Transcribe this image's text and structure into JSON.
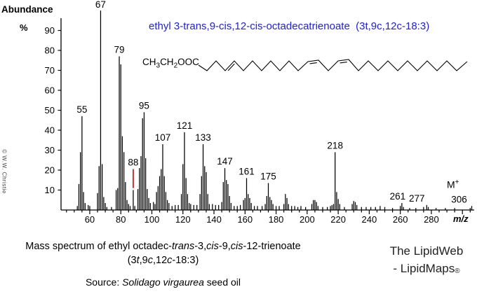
{
  "title": "ethyl 3-trans,9-cis,12-cis-octadecatrienoate  (3t,9c,12c-18:3)",
  "watermark": "© W.W. Christie",
  "molecule": {
    "p1": "CH",
    "s1": "3",
    "p2": "CH",
    "s2": "2",
    "p3": "OOC"
  },
  "molecular_ion": {
    "label": "M",
    "charge": "+"
  },
  "chart_data": {
    "type": "bar",
    "title": "ethyl 3-trans,9-cis,12-cis-octadecatrienoate  (3t,9c,12c-18:3)",
    "xlabel": "m/z",
    "ylabel_parts": {
      "line1": "Abundance",
      "line2": "%"
    },
    "xlim": [
      41.5,
      308
    ],
    "ylim": [
      0,
      100
    ],
    "yticks": [
      10,
      20,
      30,
      40,
      50,
      60,
      70,
      80,
      90
    ],
    "xticks": [
      60,
      80,
      100,
      120,
      140,
      160,
      180,
      200,
      220,
      240,
      260,
      280
    ],
    "minor_tick_step": 5,
    "grid": false,
    "bar_color": "#000000",
    "marker": {
      "mz": 88,
      "from": 11,
      "to": 20.5,
      "color": "#cc0000"
    },
    "peak_labels": [
      {
        "mz": 55,
        "text": "55"
      },
      {
        "mz": 67,
        "text": "67"
      },
      {
        "mz": 79,
        "text": "79"
      },
      {
        "mz": 88,
        "text": "88"
      },
      {
        "mz": 95,
        "text": "95"
      },
      {
        "mz": 107,
        "text": "107"
      },
      {
        "mz": 121,
        "text": "121"
      },
      {
        "mz": 133,
        "text": "133"
      },
      {
        "mz": 147,
        "text": "147"
      },
      {
        "mz": 161,
        "text": "161"
      },
      {
        "mz": 175,
        "text": "175"
      },
      {
        "mz": 218,
        "text": "218"
      },
      {
        "mz": 261,
        "text": "261",
        "dx": -6
      },
      {
        "mz": 277,
        "text": "277",
        "dx": -14
      },
      {
        "mz": 306,
        "text": "306",
        "dx": -18
      }
    ],
    "peaks": [
      [
        52,
        2
      ],
      [
        53,
        13
      ],
      [
        54,
        29
      ],
      [
        55,
        47
      ],
      [
        56,
        9
      ],
      [
        57,
        3.5
      ],
      [
        59,
        2.5
      ],
      [
        60,
        2
      ],
      [
        65,
        8.5
      ],
      [
        66,
        22
      ],
      [
        67,
        100
      ],
      [
        68,
        23
      ],
      [
        69,
        6.5
      ],
      [
        70,
        3.5
      ],
      [
        71,
        1.5
      ],
      [
        74,
        1.5
      ],
      [
        77,
        10
      ],
      [
        78,
        11
      ],
      [
        79,
        77
      ],
      [
        80,
        73
      ],
      [
        81,
        37
      ],
      [
        82,
        29
      ],
      [
        83,
        14
      ],
      [
        84,
        5
      ],
      [
        85,
        3
      ],
      [
        86,
        2
      ],
      [
        88,
        10
      ],
      [
        89,
        2
      ],
      [
        91,
        10.5
      ],
      [
        92,
        21
      ],
      [
        93,
        27
      ],
      [
        94,
        46
      ],
      [
        95,
        49
      ],
      [
        96,
        26
      ],
      [
        97,
        10.5
      ],
      [
        98,
        6
      ],
      [
        99,
        3.5
      ],
      [
        101,
        4
      ],
      [
        102,
        3
      ],
      [
        103,
        9
      ],
      [
        104,
        12
      ],
      [
        105,
        17
      ],
      [
        106,
        20.5
      ],
      [
        107,
        33
      ],
      [
        108,
        17
      ],
      [
        109,
        9
      ],
      [
        110,
        5
      ],
      [
        111,
        3.5
      ],
      [
        113,
        2
      ],
      [
        115,
        2.5
      ],
      [
        117,
        2.5
      ],
      [
        119,
        8
      ],
      [
        120,
        23
      ],
      [
        121,
        39
      ],
      [
        122,
        16
      ],
      [
        123,
        8
      ],
      [
        124,
        3.5
      ],
      [
        125,
        3
      ],
      [
        127,
        2.5
      ],
      [
        129,
        2.5
      ],
      [
        131,
        8
      ],
      [
        132,
        17
      ],
      [
        133,
        33
      ],
      [
        134,
        22
      ],
      [
        135,
        19
      ],
      [
        136,
        8
      ],
      [
        137,
        3
      ],
      [
        139,
        3
      ],
      [
        141,
        2.5
      ],
      [
        143,
        2.5
      ],
      [
        145,
        4
      ],
      [
        146,
        14
      ],
      [
        147,
        21
      ],
      [
        148,
        15
      ],
      [
        149,
        13
      ],
      [
        150,
        7
      ],
      [
        151,
        3.5
      ],
      [
        153,
        2
      ],
      [
        155,
        2
      ],
      [
        157,
        2.5
      ],
      [
        159,
        5
      ],
      [
        160,
        6
      ],
      [
        161,
        16
      ],
      [
        162,
        8
      ],
      [
        163,
        6
      ],
      [
        164,
        3.5
      ],
      [
        166,
        2
      ],
      [
        168,
        2
      ],
      [
        171,
        2
      ],
      [
        173,
        3
      ],
      [
        174,
        7
      ],
      [
        175,
        13.5
      ],
      [
        176,
        6.5
      ],
      [
        177,
        5
      ],
      [
        178,
        3
      ],
      [
        180,
        2
      ],
      [
        182,
        2
      ],
      [
        185,
        3
      ],
      [
        186,
        8
      ],
      [
        187,
        6
      ],
      [
        188,
        3
      ],
      [
        190,
        2
      ],
      [
        192,
        2
      ],
      [
        194,
        1.5
      ],
      [
        196,
        2
      ],
      [
        199,
        1.5
      ],
      [
        203,
        3
      ],
      [
        204,
        5
      ],
      [
        205,
        5
      ],
      [
        206,
        4
      ],
      [
        207,
        2
      ],
      [
        210,
        1.5
      ],
      [
        213,
        1.5
      ],
      [
        215,
        2
      ],
      [
        216,
        2.5
      ],
      [
        217,
        3
      ],
      [
        218,
        29
      ],
      [
        219,
        9
      ],
      [
        220,
        5.5
      ],
      [
        221,
        3
      ],
      [
        224,
        1.5
      ],
      [
        229,
        3
      ],
      [
        230,
        4.5
      ],
      [
        231,
        4
      ],
      [
        232,
        2.5
      ],
      [
        235,
        1.5
      ],
      [
        238,
        1.5
      ],
      [
        241,
        1.5
      ],
      [
        244,
        1.5
      ],
      [
        247,
        2
      ],
      [
        250,
        1.5
      ],
      [
        255,
        1
      ],
      [
        260,
        2
      ],
      [
        261,
        3.5
      ],
      [
        262,
        1.5
      ],
      [
        266,
        1
      ],
      [
        270,
        1
      ],
      [
        275,
        1.5
      ],
      [
        277,
        2.5
      ],
      [
        278,
        1.5
      ],
      [
        283,
        1
      ],
      [
        289,
        1
      ],
      [
        295,
        1
      ],
      [
        305,
        1
      ],
      [
        306,
        2
      ]
    ]
  },
  "footer": {
    "caption_line1": [
      {
        "t": "Mass spectrum of ethyl octadec-",
        "i": false
      },
      {
        "t": "trans",
        "i": true
      },
      {
        "t": "-3,",
        "i": false
      },
      {
        "t": "cis",
        "i": true
      },
      {
        "t": "-9,",
        "i": false
      },
      {
        "t": "cis",
        "i": true
      },
      {
        "t": "-12-trienoate",
        "i": false
      }
    ],
    "caption_line2": [
      {
        "t": "(3",
        "i": false
      },
      {
        "t": "t",
        "i": true
      },
      {
        "t": ",9",
        "i": false
      },
      {
        "t": "c",
        "i": true
      },
      {
        "t": ",12",
        "i": false
      },
      {
        "t": "c",
        "i": true
      },
      {
        "t": "-18:3)",
        "i": false
      }
    ],
    "source_line": [
      {
        "t": "Source: ",
        "i": false
      },
      {
        "t": "Solidago virgaurea",
        "i": true
      },
      {
        "t": " seed oil",
        "i": false
      }
    ],
    "brand": {
      "line1": "The LipidWeb",
      "line2_prefix": "- LipidMaps",
      "registered": "®"
    }
  }
}
